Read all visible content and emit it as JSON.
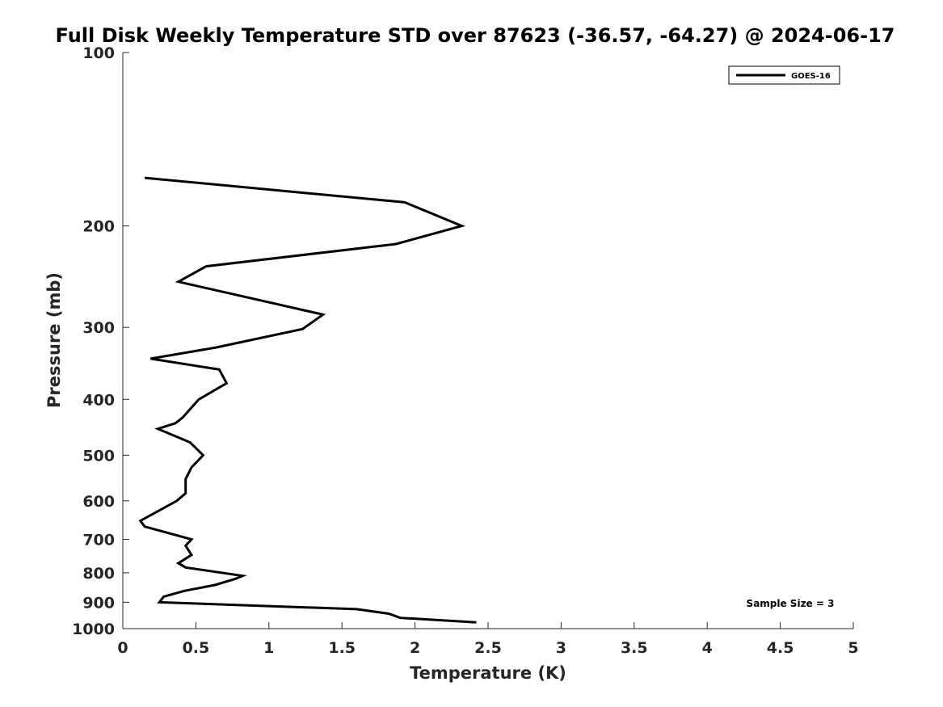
{
  "chart_data": {
    "type": "line",
    "title": "Full Disk Weekly Temperature STD over 87623 (-36.57, -64.27) @ 2024-06-17",
    "xlabel": "Temperature (K)",
    "ylabel": "Pressure (mb)",
    "xlim": [
      0,
      5
    ],
    "ylim": [
      100,
      1000
    ],
    "yscale": "log",
    "y_reversed": true,
    "xticks": [
      0,
      0.5,
      1,
      1.5,
      2,
      2.5,
      3,
      3.5,
      4,
      4.5,
      5
    ],
    "xtick_labels": [
      "0",
      "0.5",
      "1",
      "1.5",
      "2",
      "2.5",
      "3",
      "3.5",
      "4",
      "4.5",
      "5"
    ],
    "yticks": [
      100,
      200,
      300,
      400,
      500,
      600,
      700,
      800,
      900,
      1000
    ],
    "ytick_labels": [
      "100",
      "200",
      "300",
      "400",
      "500",
      "600",
      "700",
      "800",
      "900",
      "1000"
    ],
    "grid": false,
    "legend_position": "top-right",
    "annotation": "Sample Size = 3",
    "series": [
      {
        "name": "GOES-16",
        "color": "#000000",
        "points": [
          [
            2.42,
            975
          ],
          [
            1.9,
            958
          ],
          [
            1.82,
            942
          ],
          [
            1.6,
            925
          ],
          [
            0.25,
            900
          ],
          [
            0.28,
            880
          ],
          [
            0.42,
            860
          ],
          [
            0.63,
            840
          ],
          [
            0.77,
            820
          ],
          [
            0.82,
            810
          ],
          [
            0.43,
            783
          ],
          [
            0.38,
            770
          ],
          [
            0.47,
            745
          ],
          [
            0.43,
            718
          ],
          [
            0.47,
            700
          ],
          [
            0.15,
            665
          ],
          [
            0.12,
            650
          ],
          [
            0.37,
            600
          ],
          [
            0.43,
            582
          ],
          [
            0.43,
            550
          ],
          [
            0.47,
            525
          ],
          [
            0.55,
            500
          ],
          [
            0.46,
            475
          ],
          [
            0.24,
            450
          ],
          [
            0.36,
            440
          ],
          [
            0.41,
            430
          ],
          [
            0.52,
            400
          ],
          [
            0.71,
            375
          ],
          [
            0.66,
            355
          ],
          [
            0.19,
            340
          ],
          [
            0.64,
            325
          ],
          [
            1.23,
            302
          ],
          [
            1.37,
            285
          ],
          [
            0.38,
            250
          ],
          [
            0.57,
            235
          ],
          [
            1.87,
            215
          ],
          [
            2.32,
            200
          ],
          [
            1.93,
            182
          ],
          [
            0.15,
            165
          ]
        ]
      }
    ]
  }
}
